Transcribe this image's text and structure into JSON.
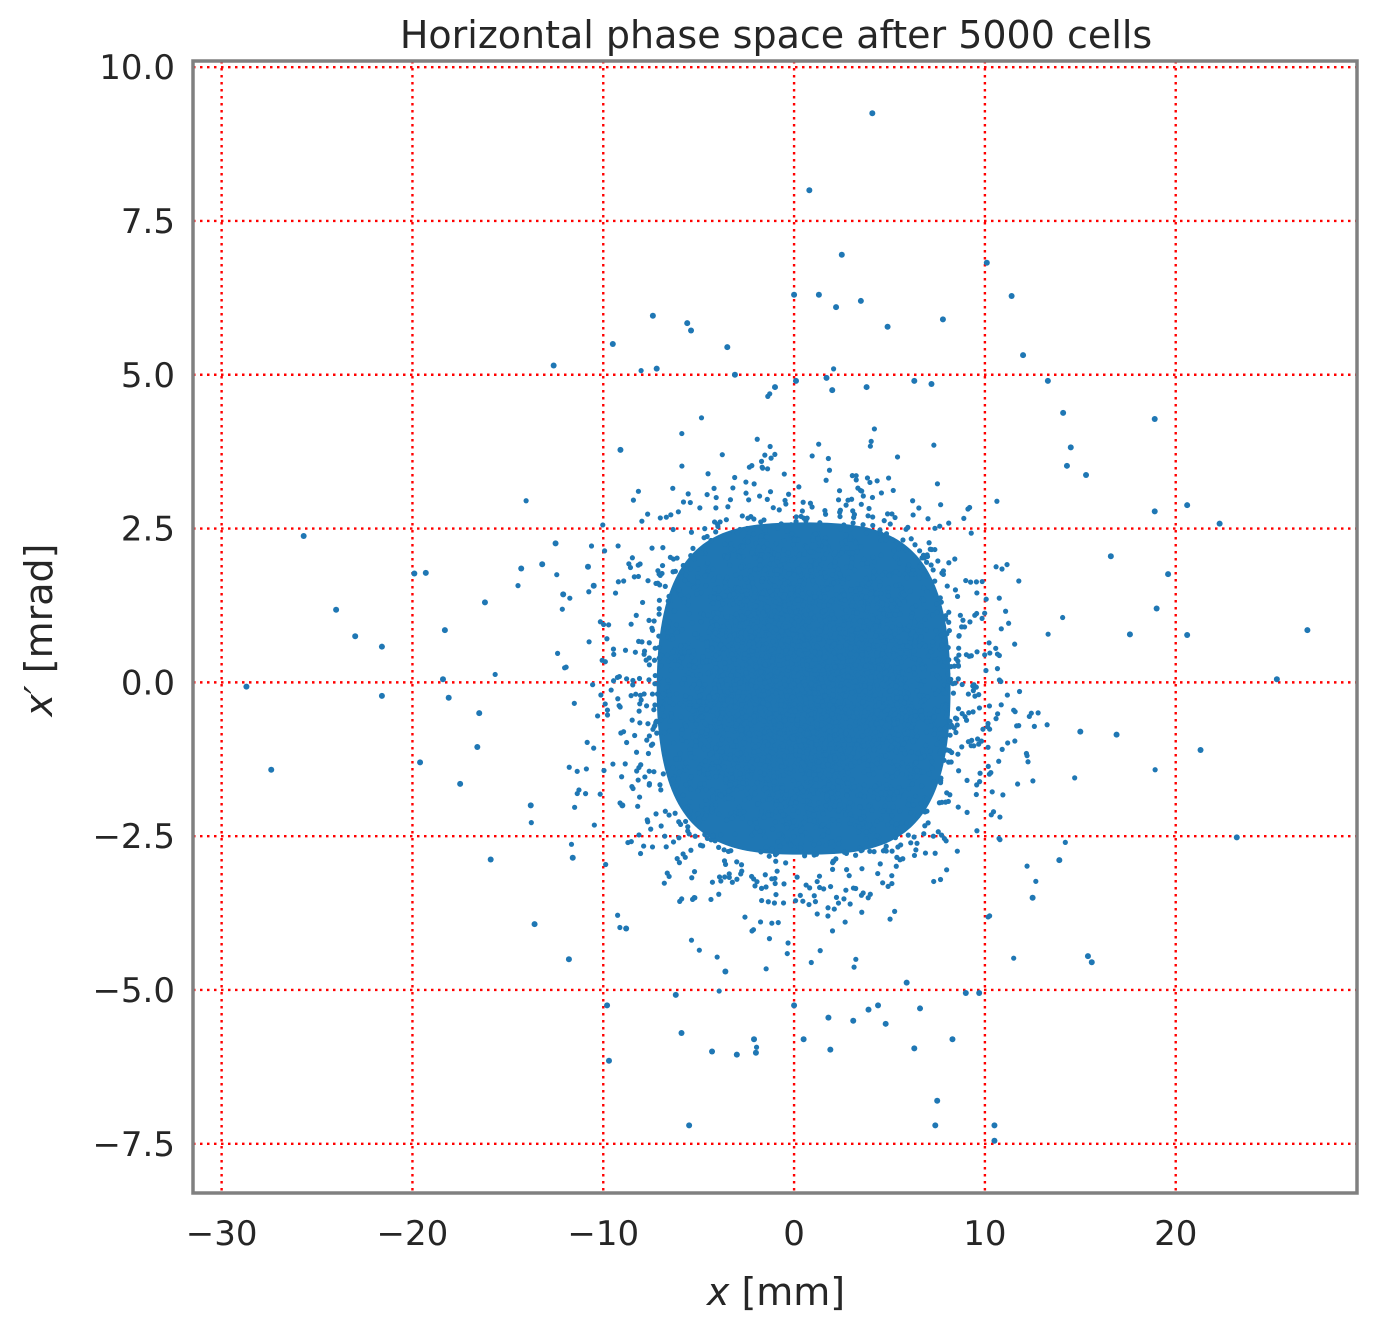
{
  "chart_data": {
    "type": "scatter",
    "title": "Horizontal phase space after 5000 cells",
    "xlabel_symbol": "x",
    "xlabel_unit": " [mm]",
    "ylabel_symbol": "x′",
    "ylabel_unit": " [mrad]",
    "xlim": [
      -31.5,
      29.5
    ],
    "ylim": [
      -8.3,
      10.1
    ],
    "xticks": [
      -30,
      -20,
      -10,
      0,
      10,
      20
    ],
    "xtick_labels": [
      "−30",
      "−20",
      "−10",
      "0",
      "10",
      "20"
    ],
    "yticks": [
      -7.5,
      -5.0,
      -2.5,
      0.0,
      2.5,
      5.0,
      7.5,
      10.0
    ],
    "ytick_labels": [
      "−7.5",
      "−5.0",
      "−2.5",
      "0.0",
      "2.5",
      "5.0",
      "7.5",
      "10.0"
    ],
    "grid": true,
    "grid_color": "#ff0000",
    "marker_color": "#1f77b4",
    "frame_color": "#808080",
    "dense_core": {
      "center": [
        0.5,
        -0.1
      ],
      "half_width_x": 7.7,
      "half_width_y": 2.5
    },
    "x": [
      4.1,
      0.8,
      2.5,
      10.1,
      11.4,
      0.0,
      1.3,
      2.2,
      3.5,
      7.8,
      4.9,
      -7.4,
      -5.6,
      -5.4,
      -9.5,
      -3.5,
      -12.6,
      -7.2,
      -3.1,
      0.1,
      -1.0,
      1.7,
      2.0,
      3.8,
      6.3,
      7.2,
      12.0,
      13.3,
      14.1,
      18.9,
      14.5,
      20.6,
      22.3,
      14.3,
      15.3,
      18.9,
      19.6,
      20.6,
      16.6,
      19.0,
      17.6,
      26.9,
      25.3,
      21.3,
      16.9,
      15.0,
      23.2,
      15.4,
      15.6,
      13.9,
      12.5,
      10.5,
      10.5,
      7.5,
      7.4,
      9.0,
      5.9,
      -5.5,
      -9.7,
      -11.8,
      -9.8,
      -13.6,
      -8.8,
      -11.6,
      -9.0,
      -13.8,
      -15.9,
      -18.1,
      -19.6,
      -17.5,
      -16.6,
      -18.4,
      -16.5,
      -21.6,
      -24.0,
      -23.0,
      -25.7,
      -28.7,
      -27.4,
      -19.9,
      -21.6,
      -18.3,
      -19.3,
      -16.2,
      -14.3,
      -13.2,
      -12.5,
      -12.1,
      -10.8,
      -10.5,
      -9.1,
      -4.3,
      -6.2,
      -2.1,
      1.9,
      4.4,
      -3.6,
      -5.9,
      0.0,
      -2.0,
      -3.0,
      3.9,
      6.3,
      0.5,
      1.8,
      3.1,
      4.8,
      6.6,
      8.3,
      9.7
    ],
    "y": [
      9.25,
      8.0,
      6.95,
      6.82,
      6.28,
      6.3,
      6.3,
      6.1,
      6.2,
      5.9,
      5.78,
      5.96,
      5.84,
      5.72,
      5.5,
      5.45,
      5.15,
      5.1,
      5.0,
      4.9,
      4.8,
      4.95,
      4.75,
      4.8,
      4.9,
      4.85,
      5.32,
      4.9,
      4.38,
      4.28,
      3.82,
      2.88,
      2.58,
      3.52,
      3.37,
      2.78,
      1.76,
      0.77,
      2.05,
      1.2,
      0.78,
      0.85,
      0.05,
      -1.1,
      -0.85,
      -0.8,
      -2.52,
      -4.45,
      -4.55,
      -2.89,
      -3.5,
      -7.2,
      -7.45,
      -6.8,
      -7.2,
      -5.05,
      -4.88,
      -7.2,
      -6.15,
      -4.5,
      -5.25,
      -3.93,
      -4.0,
      -2.85,
      -2.0,
      -2.0,
      -2.88,
      -0.25,
      -1.3,
      -1.65,
      -1.05,
      0.05,
      -0.5,
      -0.22,
      1.18,
      0.75,
      2.38,
      -0.07,
      -1.42,
      1.77,
      0.58,
      0.85,
      1.78,
      1.3,
      1.85,
      1.92,
      2.26,
      1.43,
      1.88,
      1.57,
      3.78,
      -6.0,
      -5.08,
      -5.8,
      -5.97,
      -5.25,
      -4.7,
      -5.7,
      -5.25,
      -6.02,
      -6.05,
      -5.32,
      -5.95,
      -5.8,
      -5.45,
      -5.5,
      -5.55,
      -5.3,
      -5.8,
      -5.05
    ]
  }
}
